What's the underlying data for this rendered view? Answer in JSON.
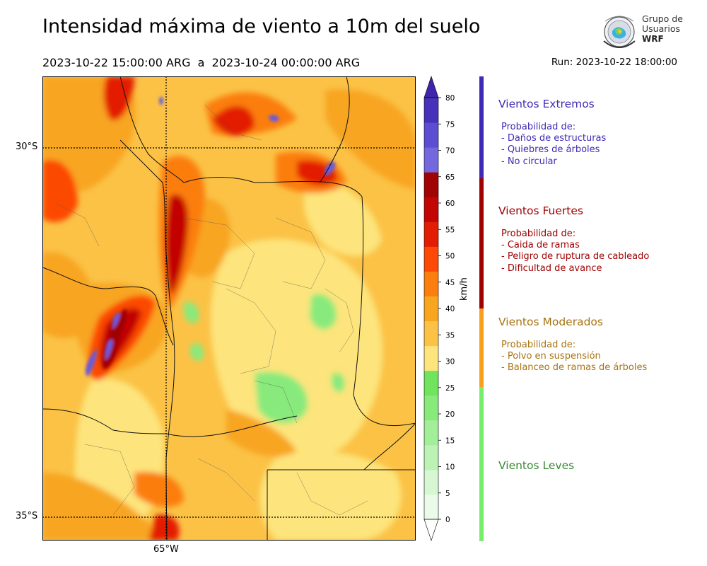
{
  "title": "Intensidad máxima de viento a 10m del suelo",
  "period": "2023-10-22 15:00:00 ARG  a  2023-10-24 00:00:00 ARG",
  "run": "Run: 2023-10-22 18:00:00",
  "logo": {
    "line1": "Grupo de",
    "line2": "Usuarios",
    "line3": "WRF"
  },
  "map": {
    "lat_labels": [
      "30°S",
      "35°S"
    ],
    "lon_labels": [
      "65°W"
    ]
  },
  "colorbar": {
    "unit": "km/h",
    "ticks": [
      "0",
      "5",
      "10",
      "15",
      "20",
      "25",
      "30",
      "35",
      "40",
      "45",
      "50",
      "55",
      "60",
      "65",
      "70",
      "75",
      "80"
    ],
    "colors": [
      "#eafce9",
      "#d6f7d2",
      "#bdf2b5",
      "#a3ee99",
      "#88ea7b",
      "#70e45d",
      "#fde47c",
      "#fbc246",
      "#f8a520",
      "#fb7e0e",
      "#fc4a06",
      "#e31c04",
      "#c30504",
      "#a00404",
      "#7468df",
      "#5b4ed3",
      "#4732bb"
    ],
    "extend_color_top": "#3f25ad"
  },
  "legend": [
    {
      "title": "Vientos Extremos",
      "color": "#3e2bb5",
      "text_color": "#3e2bb5",
      "desc": "Probabilidad de:\n- Daños de estructuras\n- Quiebres de árboles\n- No circular"
    },
    {
      "title": "Vientos Fuertes",
      "color": "#a00000",
      "text_color": "#a00000",
      "desc": "Probabilidad de:\n- Caida de ramas\n- Peligro de ruptura de cableado\n- Dificultad de avance"
    },
    {
      "title": "Vientos Moderados",
      "color": "#f8a01c",
      "text_color": "#a87311",
      "desc": "Probabilidad de:\n- Polvo en suspensión\n- Balanceo de ramas de árboles"
    },
    {
      "title": "Vientos Leves",
      "color": "#76ee6a",
      "text_color": "#3a8a35",
      "desc": ""
    }
  ]
}
